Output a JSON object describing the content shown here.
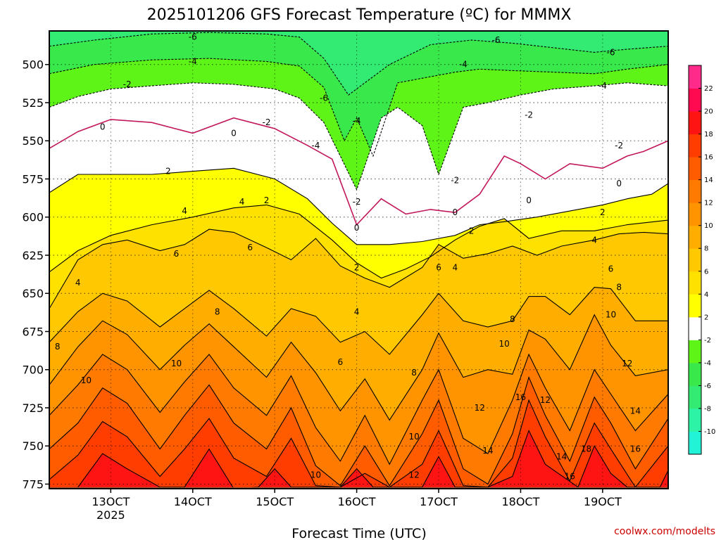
{
  "chart_data": {
    "type": "heatmap",
    "title": "2025101206 GFS Forecast Temperature (ºC) for MMMX",
    "xlabel": "Forecast Time (UTC)",
    "ylabel": "",
    "credit": "coolwx.com/modelts",
    "y_axis": {
      "reversed": true,
      "range": [
        478,
        778
      ],
      "ticks": [
        500,
        525,
        550,
        575,
        600,
        625,
        650,
        675,
        700,
        725,
        750,
        775
      ]
    },
    "x_axis": {
      "range_days": [
        12.25,
        19.8
      ],
      "ticks": [
        {
          "day": 13,
          "label": "13OCT",
          "sublabel": "2025"
        },
        {
          "day": 14,
          "label": "14OCT",
          "sublabel": ""
        },
        {
          "day": 15,
          "label": "15OCT",
          "sublabel": ""
        },
        {
          "day": 16,
          "label": "16OCT",
          "sublabel": ""
        },
        {
          "day": 17,
          "label": "17OCT",
          "sublabel": ""
        },
        {
          "day": 18,
          "label": "18OCT",
          "sublabel": ""
        },
        {
          "day": 19,
          "label": "19OCT",
          "sublabel": ""
        }
      ]
    },
    "ground_level_hpa": 777,
    "colorbar": {
      "levels": [
        -12,
        -10,
        -8,
        -6,
        -4,
        -2,
        2,
        4,
        6,
        8,
        10,
        12,
        14,
        16,
        18,
        20,
        22,
        24
      ],
      "tick_labels": [
        "-10",
        "-8",
        "-6",
        "-4",
        "-2",
        "2",
        "4",
        "6",
        "8",
        "10",
        "12",
        "14",
        "16",
        "18",
        "20",
        "22"
      ],
      "colors": [
        "#22f3d7",
        "#2df3a6",
        "#33ea73",
        "#39e84a",
        "#5ff417",
        "#ffffff",
        "#ffff00",
        "#ffe100",
        "#ffc800",
        "#ffae00",
        "#ff9400",
        "#ff7a00",
        "#ff5c00",
        "#ff3d00",
        "#ff1414",
        "#ff0a50",
        "#ff2a8a"
      ]
    },
    "freezing_contour_color": "#c2185b",
    "contour_levels": [
      -6,
      -4,
      -2,
      0,
      2,
      4,
      6,
      8,
      10,
      12,
      14,
      16,
      18
    ],
    "series": [
      {
        "name": "-6",
        "day": [
          12.25,
          12.8,
          13.5,
          14.2,
          14.9,
          15.3,
          15.6,
          15.9,
          16.4,
          16.9,
          17.4,
          17.9,
          18.4,
          18.9,
          19.3,
          19.8
        ],
        "hpa": [
          488,
          484,
          480,
          479,
          480,
          482,
          496,
          520,
          500,
          487,
          484,
          486,
          489,
          492,
          490,
          488
        ]
      },
      {
        "name": "-4",
        "day": [
          12.25,
          12.8,
          13.5,
          14.2,
          14.9,
          15.3,
          15.6,
          15.85,
          16.0,
          16.2,
          16.5,
          16.9,
          17.2,
          17.5,
          17.9,
          18.4,
          18.9,
          19.3,
          19.8
        ],
        "hpa": [
          506,
          500,
          497,
          496,
          498,
          501,
          515,
          550,
          535,
          560,
          512,
          508,
          505,
          503,
          504,
          505,
          506,
          503,
          500
        ]
      },
      {
        "name": "-2",
        "day": [
          12.25,
          12.6,
          13.0,
          13.5,
          14.0,
          14.5,
          15.0,
          15.3,
          15.6,
          16.0,
          16.3,
          16.5,
          16.8,
          17.0,
          17.3,
          17.6,
          18.0,
          18.4,
          18.9,
          19.3,
          19.8
        ],
        "hpa": [
          528,
          521,
          516,
          514,
          512,
          513,
          516,
          522,
          538,
          582,
          535,
          528,
          540,
          572,
          528,
          525,
          520,
          516,
          514,
          512,
          514
        ]
      },
      {
        "name": "0",
        "day": [
          12.25,
          12.6,
          13.0,
          13.5,
          14.0,
          14.5,
          15.0,
          15.4,
          15.7,
          16.0,
          16.3,
          16.6,
          16.9,
          17.2,
          17.5,
          17.8,
          18.0,
          18.3,
          18.6,
          19.0,
          19.3,
          19.5,
          19.8
        ],
        "hpa": [
          555,
          544,
          536,
          538,
          545,
          535,
          542,
          553,
          562,
          605,
          588,
          598,
          595,
          597,
          585,
          560,
          565,
          575,
          565,
          568,
          560,
          557,
          550
        ]
      },
      {
        "name": "2",
        "day": [
          12.25,
          12.6,
          13.0,
          13.5,
          14.0,
          14.5,
          15.0,
          15.4,
          15.7,
          16.0,
          16.4,
          16.8,
          17.2,
          17.5,
          17.8,
          18.2,
          18.6,
          19.0,
          19.3,
          19.6,
          19.8
        ],
        "hpa": [
          584,
          572,
          572,
          572,
          570,
          568,
          575,
          588,
          604,
          618,
          618,
          616,
          612,
          605,
          603,
          600,
          596,
          592,
          588,
          585,
          578
        ]
      },
      {
        "name": "4",
        "day": [
          12.25,
          12.6,
          13.0,
          13.5,
          14.0,
          14.5,
          14.9,
          15.3,
          15.7,
          16.0,
          16.3,
          16.6,
          16.9,
          17.2,
          17.5,
          17.8,
          18.1,
          18.5,
          18.9,
          19.3,
          19.8
        ],
        "hpa": [
          636,
          622,
          612,
          605,
          600,
          594,
          592,
          598,
          615,
          630,
          640,
          634,
          626,
          615,
          606,
          601,
          614,
          609,
          609,
          605,
          602
        ]
      },
      {
        "name": "6",
        "day": [
          12.25,
          12.6,
          12.9,
          13.2,
          13.6,
          13.9,
          14.2,
          14.5,
          14.9,
          15.2,
          15.5,
          15.8,
          16.1,
          16.4,
          16.8,
          17.0,
          17.3,
          17.6,
          17.9,
          18.2,
          18.5,
          18.9,
          19.2,
          19.5,
          19.8
        ],
        "hpa": [
          660,
          628,
          618,
          615,
          622,
          618,
          608,
          610,
          620,
          628,
          614,
          632,
          640,
          646,
          633,
          618,
          627,
          624,
          619,
          625,
          619,
          615,
          611,
          610,
          611
        ]
      },
      {
        "name": "8",
        "day": [
          12.25,
          12.6,
          12.9,
          13.2,
          13.6,
          13.9,
          14.2,
          14.5,
          14.9,
          15.2,
          15.5,
          15.8,
          16.1,
          16.4,
          16.8,
          17.0,
          17.3,
          17.6,
          17.9,
          18.1,
          18.3,
          18.6,
          18.9,
          19.1,
          19.4,
          19.8
        ],
        "hpa": [
          682,
          662,
          650,
          655,
          672,
          660,
          648,
          660,
          678,
          660,
          665,
          682,
          675,
          690,
          664,
          650,
          668,
          672,
          668,
          652,
          652,
          664,
          646,
          647,
          668,
          668
        ]
      },
      {
        "name": "10",
        "day": [
          12.25,
          12.6,
          12.9,
          13.2,
          13.6,
          13.9,
          14.2,
          14.5,
          14.9,
          15.2,
          15.5,
          15.8,
          16.1,
          16.4,
          16.8,
          17.0,
          17.3,
          17.6,
          17.9,
          18.1,
          18.3,
          18.6,
          18.9,
          19.1,
          19.4,
          19.8
        ],
        "hpa": [
          710,
          685,
          668,
          677,
          700,
          684,
          670,
          685,
          705,
          682,
          702,
          727,
          706,
          733,
          700,
          676,
          705,
          700,
          703,
          674,
          680,
          700,
          664,
          684,
          704,
          700
        ]
      },
      {
        "name": "12",
        "day": [
          12.25,
          12.6,
          12.9,
          13.2,
          13.6,
          13.9,
          14.2,
          14.5,
          14.9,
          15.2,
          15.5,
          15.8,
          16.1,
          16.4,
          16.8,
          17.0,
          17.3,
          17.6,
          17.9,
          18.1,
          18.3,
          18.6,
          18.9,
          19.1,
          19.4,
          19.8
        ],
        "hpa": [
          730,
          710,
          690,
          700,
          728,
          708,
          690,
          712,
          730,
          704,
          738,
          760,
          730,
          762,
          720,
          700,
          745,
          755,
          720,
          690,
          712,
          740,
          700,
          716,
          740,
          716
        ]
      },
      {
        "name": "14",
        "day": [
          12.25,
          12.6,
          12.9,
          13.2,
          13.6,
          13.9,
          14.2,
          14.5,
          14.9,
          15.2,
          15.5,
          15.8,
          16.1,
          16.4,
          16.8,
          17.0,
          17.3,
          17.6,
          17.9,
          18.1,
          18.3,
          18.6,
          18.9,
          19.1,
          19.4,
          19.8
        ],
        "hpa": [
          752,
          735,
          712,
          722,
          752,
          730,
          710,
          735,
          752,
          725,
          763,
          776,
          750,
          776,
          742,
          720,
          765,
          775,
          742,
          705,
          730,
          760,
          718,
          735,
          765,
          732
        ]
      },
      {
        "name": "16",
        "day": [
          12.25,
          12.6,
          12.9,
          13.2,
          13.6,
          13.9,
          14.2,
          14.5,
          14.9,
          15.2,
          15.5,
          15.8,
          16.1,
          16.4,
          16.8,
          17.0,
          17.3,
          17.6,
          17.9,
          18.1,
          18.3,
          18.6,
          18.9,
          19.1,
          19.4,
          19.8
        ],
        "hpa": [
          772,
          756,
          734,
          744,
          770,
          752,
          732,
          758,
          770,
          745,
          776,
          777,
          768,
          777,
          762,
          740,
          776,
          777,
          758,
          720,
          744,
          773,
          735,
          752,
          777,
          750
        ]
      },
      {
        "name": "18",
        "day": [
          12.6,
          12.9,
          13.2,
          13.6,
          13.9,
          14.2,
          14.5,
          14.8,
          15.0,
          15.2,
          15.4,
          15.8,
          16.0,
          16.2,
          16.8,
          17.0,
          17.2,
          17.6,
          17.9,
          18.1,
          18.3,
          18.7,
          18.9,
          19.1,
          19.3,
          19.7,
          19.8
        ],
        "hpa": [
          777,
          755,
          765,
          777,
          777,
          752,
          778,
          777,
          765,
          777,
          777,
          777,
          765,
          777,
          777,
          757,
          777,
          777,
          770,
          740,
          762,
          777,
          750,
          768,
          777,
          777,
          766
        ]
      }
    ],
    "contour_labels": [
      {
        "text": "-6",
        "day": 14.0,
        "hpa": 482
      },
      {
        "text": "-6",
        "day": 15.6,
        "hpa": 522
      },
      {
        "text": "-6",
        "day": 17.7,
        "hpa": 484
      },
      {
        "text": "-6",
        "day": 19.1,
        "hpa": 492
      },
      {
        "text": "-4",
        "day": 14.0,
        "hpa": 498
      },
      {
        "text": "-4",
        "day": 15.5,
        "hpa": 553
      },
      {
        "text": "-4",
        "day": 16.0,
        "hpa": 537
      },
      {
        "text": "-4",
        "day": 17.3,
        "hpa": 500
      },
      {
        "text": "-4",
        "day": 19.0,
        "hpa": 514
      },
      {
        "text": "-2",
        "day": 13.2,
        "hpa": 513
      },
      {
        "text": "-2",
        "day": 14.9,
        "hpa": 538
      },
      {
        "text": "-2",
        "day": 16.0,
        "hpa": 590
      },
      {
        "text": "-2",
        "day": 17.2,
        "hpa": 576
      },
      {
        "text": "-2",
        "day": 18.1,
        "hpa": 533
      },
      {
        "text": "-2",
        "day": 19.2,
        "hpa": 553
      },
      {
        "text": "0",
        "day": 12.9,
        "hpa": 541
      },
      {
        "text": "0",
        "day": 14.5,
        "hpa": 545
      },
      {
        "text": "0",
        "day": 16.0,
        "hpa": 607
      },
      {
        "text": "0",
        "day": 17.2,
        "hpa": 597
      },
      {
        "text": "0",
        "day": 18.1,
        "hpa": 589
      },
      {
        "text": "0",
        "day": 19.2,
        "hpa": 578
      },
      {
        "text": "2",
        "day": 13.7,
        "hpa": 570
      },
      {
        "text": "2",
        "day": 14.9,
        "hpa": 589
      },
      {
        "text": "2",
        "day": 16.0,
        "hpa": 633
      },
      {
        "text": "2",
        "day": 17.4,
        "hpa": 609
      },
      {
        "text": "2",
        "day": 19.0,
        "hpa": 597
      },
      {
        "text": "4",
        "day": 12.6,
        "hpa": 643
      },
      {
        "text": "4",
        "day": 13.9,
        "hpa": 596
      },
      {
        "text": "4",
        "day": 14.6,
        "hpa": 590
      },
      {
        "text": "4",
        "day": 16.0,
        "hpa": 662
      },
      {
        "text": "4",
        "day": 17.2,
        "hpa": 633
      },
      {
        "text": "4",
        "day": 18.9,
        "hpa": 615
      },
      {
        "text": "6",
        "day": 13.8,
        "hpa": 624
      },
      {
        "text": "6",
        "day": 14.7,
        "hpa": 620
      },
      {
        "text": "6",
        "day": 15.8,
        "hpa": 695
      },
      {
        "text": "6",
        "day": 17.0,
        "hpa": 633
      },
      {
        "text": "6",
        "day": 19.1,
        "hpa": 634
      },
      {
        "text": "8",
        "day": 12.35,
        "hpa": 685
      },
      {
        "text": "8",
        "day": 14.3,
        "hpa": 662
      },
      {
        "text": "8",
        "day": 16.7,
        "hpa": 702
      },
      {
        "text": "8",
        "day": 17.9,
        "hpa": 667
      },
      {
        "text": "8",
        "day": 19.2,
        "hpa": 646
      },
      {
        "text": "10",
        "day": 12.7,
        "hpa": 707
      },
      {
        "text": "10",
        "day": 13.8,
        "hpa": 696
      },
      {
        "text": "10",
        "day": 15.5,
        "hpa": 769
      },
      {
        "text": "10",
        "day": 16.7,
        "hpa": 744
      },
      {
        "text": "10",
        "day": 17.8,
        "hpa": 683
      },
      {
        "text": "10",
        "day": 19.1,
        "hpa": 664
      },
      {
        "text": "12",
        "day": 16.7,
        "hpa": 769
      },
      {
        "text": "12",
        "day": 17.5,
        "hpa": 725
      },
      {
        "text": "12",
        "day": 18.3,
        "hpa": 720
      },
      {
        "text": "12",
        "day": 19.3,
        "hpa": 696
      },
      {
        "text": "14",
        "day": 17.6,
        "hpa": 753
      },
      {
        "text": "14",
        "day": 18.5,
        "hpa": 757
      },
      {
        "text": "14",
        "day": 19.4,
        "hpa": 727
      },
      {
        "text": "16",
        "day": 18.0,
        "hpa": 718
      },
      {
        "text": "16",
        "day": 18.6,
        "hpa": 770
      },
      {
        "text": "16",
        "day": 19.4,
        "hpa": 752
      },
      {
        "text": "18",
        "day": 18.8,
        "hpa": 752
      }
    ]
  }
}
